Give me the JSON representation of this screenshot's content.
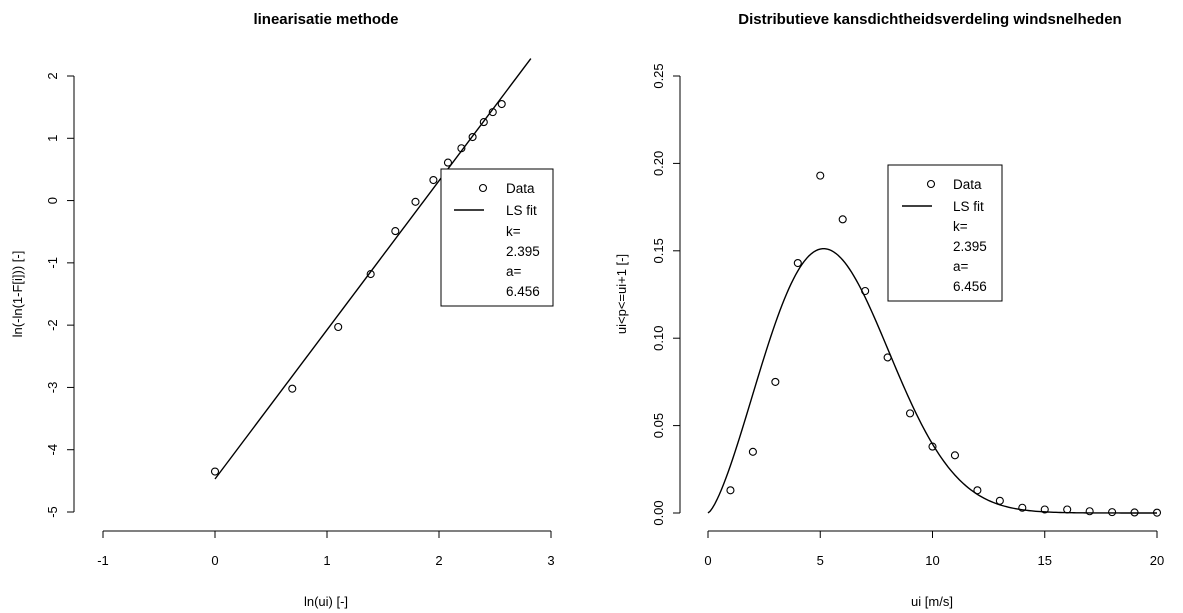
{
  "chart_data": [
    {
      "type": "scatter",
      "title": "linearisatie methode",
      "xlabel": "ln(ui) [-]",
      "ylabel": "ln(-ln(1-F[i])) [-]",
      "xlim": [
        -1,
        3
      ],
      "ylim": [
        -5,
        2
      ],
      "x_ticks": [
        -1,
        0,
        1,
        2,
        3
      ],
      "y_ticks": [
        -5,
        -4,
        -3,
        -2,
        -1,
        0,
        1,
        2
      ],
      "x_tick_labels": [
        "-1",
        "0",
        "1",
        "2",
        "3"
      ],
      "y_tick_labels": [
        "-5",
        "-4",
        "-3",
        "-2",
        "-1",
        "0",
        "1",
        "2"
      ],
      "series": [
        {
          "name": "Data",
          "kind": "points",
          "x": [
            0.0,
            0.69,
            1.1,
            1.39,
            1.61,
            1.79,
            1.95,
            2.08,
            2.2,
            2.3,
            2.4,
            2.48,
            2.56
          ],
          "y": [
            -4.35,
            -3.02,
            -2.03,
            -1.18,
            -0.49,
            -0.02,
            0.33,
            0.61,
            0.84,
            1.02,
            1.26,
            1.42,
            1.55
          ]
        },
        {
          "name": "LS fit",
          "kind": "line",
          "x": [
            0.0,
            2.82
          ],
          "y": [
            -4.47,
            2.28
          ]
        }
      ],
      "legend": {
        "position": "right",
        "entries": [
          "Data",
          "LS fit"
        ],
        "extra_lines": [
          "k=",
          "2.395",
          "a=",
          "6.456"
        ]
      }
    },
    {
      "type": "scatter",
      "title": "Distributieve kansdichtheidsverdeling windsnelheden",
      "xlabel": "ui [m/s]",
      "ylabel": "ui<p<=ui+1 [-]",
      "xlim": [
        0,
        20
      ],
      "ylim": [
        0,
        0.25
      ],
      "x_ticks": [
        0,
        5,
        10,
        15,
        20
      ],
      "y_ticks": [
        0.0,
        0.05,
        0.1,
        0.15,
        0.2,
        0.25
      ],
      "x_tick_labels": [
        "0",
        "5",
        "10",
        "15",
        "20"
      ],
      "y_tick_labels": [
        "0.00",
        "0.05",
        "0.10",
        "0.15",
        "0.20",
        "0.25"
      ],
      "series": [
        {
          "name": "Data",
          "kind": "points",
          "x": [
            1,
            2,
            3,
            4,
            5,
            6,
            7,
            8,
            9,
            10,
            11,
            12,
            13,
            14,
            15,
            16,
            17,
            18,
            19,
            20
          ],
          "y": [
            0.013,
            0.035,
            0.075,
            0.143,
            0.193,
            0.168,
            0.127,
            0.089,
            0.057,
            0.038,
            0.033,
            0.013,
            0.007,
            0.003,
            0.002,
            0.002,
            0.001,
            0.0005,
            0.0003,
            0.0002
          ]
        },
        {
          "name": "LS fit",
          "kind": "weibull_pdf",
          "k": 2.395,
          "a": 6.456,
          "x_range": [
            0,
            20
          ]
        }
      ],
      "legend": {
        "position": "top-right",
        "entries": [
          "Data",
          "LS fit"
        ],
        "extra_lines": [
          "k=",
          "2.395",
          "a=",
          "6.456"
        ]
      }
    }
  ]
}
